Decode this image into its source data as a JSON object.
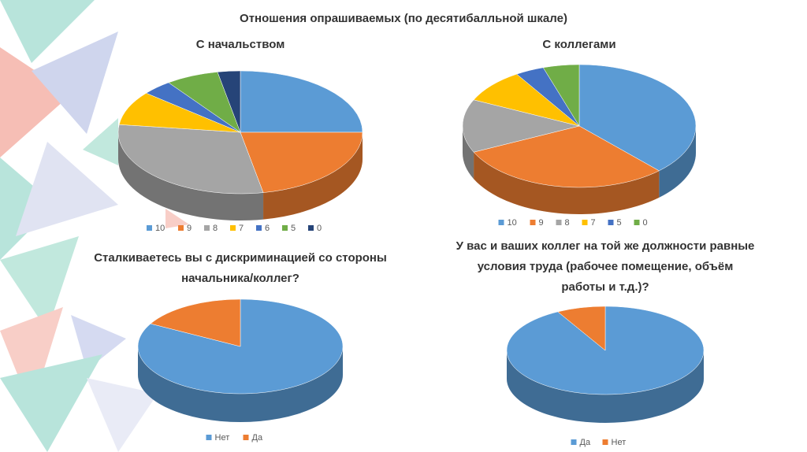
{
  "title": "Отношения опрашиваемых (по десятибалльной шкале)",
  "chart_data": [
    {
      "type": "pie",
      "title": [
        "С начальством"
      ],
      "categories": [
        "10",
        "9",
        "8",
        "7",
        "6",
        "5",
        "0"
      ],
      "values": [
        25,
        22,
        30,
        9,
        4,
        7,
        3
      ],
      "colors": [
        "#5b9bd5",
        "#ed7d31",
        "#a5a5a5",
        "#ffc000",
        "#4472c4",
        "#70ad47",
        "#264478"
      ]
    },
    {
      "type": "pie",
      "title": [
        "С коллегами"
      ],
      "categories": [
        "10",
        "9",
        "8",
        "7",
        "5",
        "0"
      ],
      "values": [
        38,
        30,
        14,
        9,
        4,
        5
      ],
      "colors": [
        "#5b9bd5",
        "#ed7d31",
        "#a5a5a5",
        "#ffc000",
        "#4472c4",
        "#70ad47"
      ]
    },
    {
      "type": "pie",
      "title": [
        "Сталкиваетесь вы с дискриминацией со стороны",
        "начальника/коллег?"
      ],
      "categories": [
        "Нет",
        "Да"
      ],
      "values": [
        83,
        17
      ],
      "colors": [
        "#5b9bd5",
        "#ed7d31"
      ]
    },
    {
      "type": "pie",
      "title": [
        "У вас и ваших коллег на той же должности равные",
        "условия труда (рабочее помещение, объём",
        "работы и т.д.)?"
      ],
      "categories": [
        "Да",
        "Нет"
      ],
      "values": [
        92,
        8
      ],
      "colors": [
        "#5b9bd5",
        "#ed7d31"
      ]
    }
  ]
}
